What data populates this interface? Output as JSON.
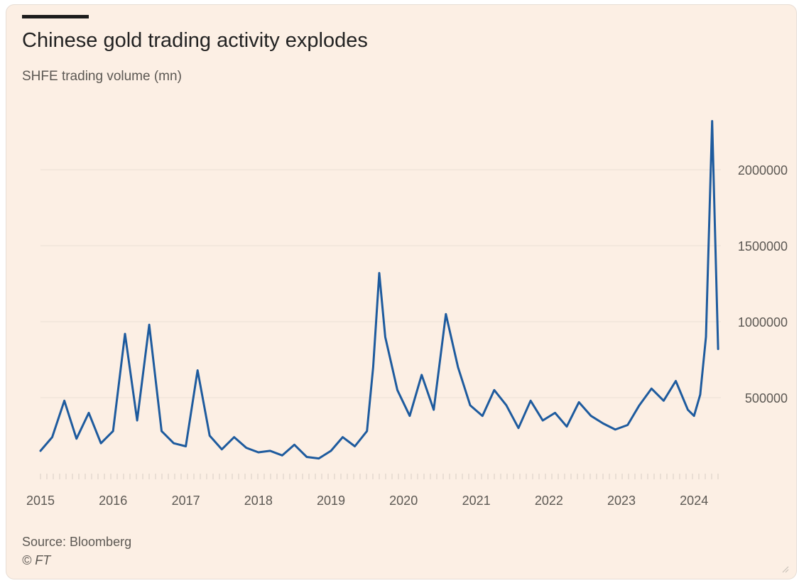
{
  "chart_data": {
    "type": "line",
    "title": "Chinese gold trading activity explodes",
    "subtitle": "SHFE trading volume (mn)",
    "ylim": [
      0,
      2400000
    ],
    "y_ticks": [
      {
        "value": 500000,
        "label": "500000"
      },
      {
        "value": 1000000,
        "label": "1000000"
      },
      {
        "value": 1500000,
        "label": "1500000"
      },
      {
        "value": 2000000,
        "label": "2000000"
      }
    ],
    "x_ticks": [
      "2015",
      "2016",
      "2017",
      "2018",
      "2019",
      "2020",
      "2021",
      "2022",
      "2023",
      "2024"
    ],
    "grid": "horizontal",
    "series": [
      {
        "color": "#1e5b9e",
        "x": [
          "2015-01",
          "2015-03",
          "2015-05",
          "2015-07",
          "2015-09",
          "2015-11",
          "2016-01",
          "2016-03",
          "2016-05",
          "2016-07",
          "2016-09",
          "2016-11",
          "2017-01",
          "2017-03",
          "2017-05",
          "2017-07",
          "2017-09",
          "2017-11",
          "2018-01",
          "2018-03",
          "2018-05",
          "2018-07",
          "2018-09",
          "2018-11",
          "2019-01",
          "2019-03",
          "2019-05",
          "2019-07",
          "2019-08",
          "2019-09",
          "2019-10",
          "2019-12",
          "2020-02",
          "2020-04",
          "2020-06",
          "2020-08",
          "2020-10",
          "2020-12",
          "2021-02",
          "2021-04",
          "2021-06",
          "2021-08",
          "2021-10",
          "2021-12",
          "2022-02",
          "2022-04",
          "2022-06",
          "2022-08",
          "2022-10",
          "2022-12",
          "2023-02",
          "2023-04",
          "2023-06",
          "2023-08",
          "2023-10",
          "2023-12",
          "2024-01",
          "2024-02",
          "2024-03",
          "2024-04",
          "2024-05"
        ],
        "values": [
          150000,
          240000,
          480000,
          230000,
          400000,
          200000,
          280000,
          920000,
          350000,
          980000,
          280000,
          200000,
          180000,
          680000,
          250000,
          160000,
          240000,
          170000,
          140000,
          150000,
          120000,
          190000,
          110000,
          100000,
          150000,
          240000,
          180000,
          280000,
          700000,
          1320000,
          900000,
          550000,
          380000,
          650000,
          420000,
          1050000,
          700000,
          450000,
          380000,
          550000,
          450000,
          300000,
          480000,
          350000,
          400000,
          310000,
          470000,
          380000,
          330000,
          290000,
          320000,
          450000,
          560000,
          480000,
          610000,
          420000,
          380000,
          520000,
          900000,
          2320000,
          820000
        ]
      }
    ]
  },
  "footer": {
    "source": "Source: Bloomberg",
    "copyright": "© FT"
  }
}
